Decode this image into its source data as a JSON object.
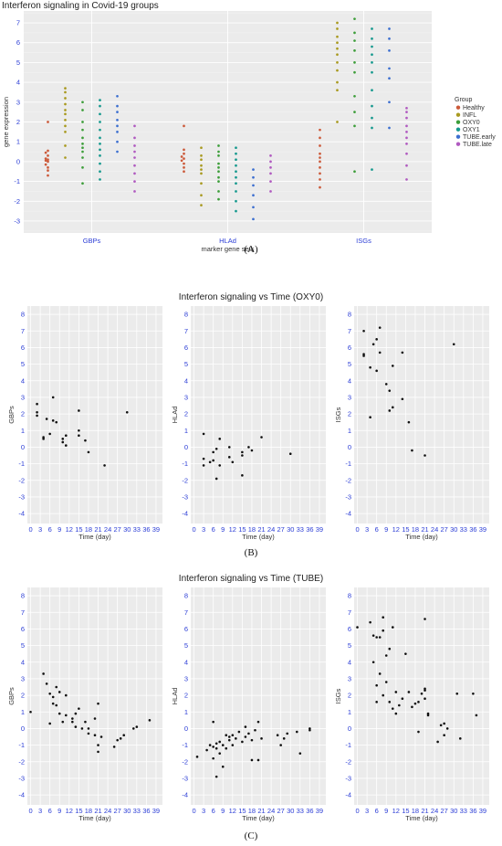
{
  "panel_labels": [
    "(A)",
    "(B)",
    "(C)"
  ],
  "colors": {
    "Healthy": "#cc5a3a",
    "INFL": "#a99a20",
    "OXY0": "#3d9e3a",
    "OXY1": "#16998e",
    "TUBE.early": "#3c6fd0",
    "TUBE.late": "#b05ac0",
    "panel_bg": "#ebebeb",
    "grid": "#ffffff",
    "point": "#111111"
  },
  "chart_data": [
    {
      "type": "scatter",
      "title": "Interferon signaling in Covid-19 groups",
      "xlabel": "marker gene sets",
      "ylabel": "gene expression",
      "categories": [
        "GBPs",
        "HLAd",
        "ISGs"
      ],
      "ylim": [
        -3.6,
        7.6
      ],
      "yticks": [
        -3,
        -2,
        -1,
        0,
        1,
        2,
        3,
        4,
        5,
        6,
        7
      ],
      "legend_title": "Group",
      "legend_position": "right",
      "groups": [
        "Healthy",
        "INFL",
        "OXY0",
        "OXY1",
        "TUBE.early",
        "TUBE.late"
      ],
      "series": [
        {
          "name": "Healthy",
          "GBPs": [
            -0.7,
            -0.45,
            -0.3,
            -0.15,
            0,
            0.05,
            0.1,
            0.15,
            0.3,
            0.45,
            0.55,
            2.0
          ],
          "HLAd": [
            -0.5,
            -0.3,
            -0.1,
            0.05,
            0.15,
            0.25,
            0.4,
            0.6,
            1.8
          ],
          "ISGs": [
            -1.3,
            -0.9,
            -0.6,
            -0.3,
            0,
            0.2,
            0.4,
            0.8,
            1.2,
            1.6
          ]
        },
        {
          "name": "INFL",
          "GBPs": [
            0.2,
            0.8,
            1.5,
            1.8,
            2.1,
            2.4,
            2.6,
            2.9,
            3.2,
            3.5,
            3.7
          ],
          "HLAd": [
            -2.2,
            -1.7,
            -1.1,
            -0.6,
            -0.4,
            -0.2,
            0.1,
            0.3,
            0.7
          ],
          "ISGs": [
            2.0,
            3.6,
            4.0,
            4.6,
            5.0,
            5.4,
            5.7,
            6.0,
            6.3,
            6.7,
            7.0
          ]
        },
        {
          "name": "OXY0",
          "GBPs": [
            -1.1,
            -0.3,
            0.2,
            0.5,
            0.7,
            0.9,
            1.2,
            1.6,
            2.0,
            2.6,
            3.0
          ],
          "HLAd": [
            -1.9,
            -1.5,
            -1.0,
            -0.8,
            -0.5,
            -0.3,
            -0.1,
            0.3,
            0.5,
            0.8
          ],
          "ISGs": [
            -0.5,
            1.8,
            2.5,
            3.3,
            4.5,
            5.0,
            5.6,
            6.1,
            6.5,
            7.2
          ]
        },
        {
          "name": "OXY1",
          "GBPs": [
            -0.9,
            -0.5,
            -0.1,
            0.3,
            0.6,
            0.9,
            1.2,
            1.6,
            2.0,
            2.4,
            2.8,
            3.1
          ],
          "HLAd": [
            -2.5,
            -2.0,
            -1.5,
            -1.1,
            -0.8,
            -0.5,
            -0.2,
            0.1,
            0.4,
            0.7
          ],
          "ISGs": [
            -0.4,
            1.7,
            2.2,
            2.8,
            3.6,
            4.5,
            5.0,
            5.4,
            5.8,
            6.2,
            6.7
          ]
        },
        {
          "name": "TUBE.early",
          "GBPs": [
            0.5,
            1.0,
            1.5,
            1.8,
            2.1,
            2.5,
            2.8,
            3.3
          ],
          "HLAd": [
            -2.9,
            -2.3,
            -1.7,
            -1.2,
            -0.8,
            -0.4
          ],
          "ISGs": [
            1.7,
            3.0,
            4.2,
            4.7,
            5.6,
            6.2,
            6.7
          ]
        },
        {
          "name": "TUBE.late",
          "GBPs": [
            -1.5,
            -1.0,
            -0.6,
            -0.2,
            0.2,
            0.5,
            0.8,
            1.2,
            1.8
          ],
          "HLAd": [
            -1.5,
            -1.0,
            -0.6,
            -0.3,
            0,
            0.3
          ],
          "ISGs": [
            -0.9,
            -0.2,
            0.4,
            0.9,
            1.2,
            1.5,
            1.8,
            2.2,
            2.5,
            2.7
          ]
        }
      ]
    },
    {
      "type": "scatter",
      "title": "Interferon signaling vs Time (OXY0)",
      "xlabel": "Time (day)",
      "xlim": [
        -1,
        41
      ],
      "ylim": [
        -4.6,
        8.5
      ],
      "xticks": [
        0,
        3,
        6,
        9,
        12,
        15,
        18,
        21,
        24,
        27,
        30,
        33,
        36,
        39
      ],
      "yticks": [
        -4,
        -3,
        -2,
        -1,
        0,
        1,
        2,
        3,
        4,
        5,
        6,
        7,
        8
      ],
      "subplots": [
        {
          "ylabel": "GBPs",
          "points": [
            [
              2,
              1.9
            ],
            [
              2,
              2.1
            ],
            [
              2,
              2.6
            ],
            [
              4,
              0.5
            ],
            [
              4,
              0.6
            ],
            [
              5,
              1.7
            ],
            [
              6,
              0.8
            ],
            [
              7,
              3.0
            ],
            [
              7,
              1.6
            ],
            [
              8,
              1.5
            ],
            [
              10,
              0.5
            ],
            [
              10,
              0.3
            ],
            [
              11,
              0.1
            ],
            [
              11,
              0.7
            ],
            [
              15,
              1.0
            ],
            [
              15,
              0.7
            ],
            [
              15,
              2.2
            ],
            [
              17,
              0.4
            ],
            [
              18,
              -0.3
            ],
            [
              23,
              -1.1
            ],
            [
              30,
              2.1
            ]
          ]
        },
        {
          "ylabel": "HLAd",
          "points": [
            [
              3,
              -1.1
            ],
            [
              3,
              -0.7
            ],
            [
              3,
              0.8
            ],
            [
              5,
              -0.9
            ],
            [
              6,
              -0.3
            ],
            [
              6,
              -0.8
            ],
            [
              7,
              -1.9
            ],
            [
              7,
              -0.1
            ],
            [
              8,
              0.5
            ],
            [
              8,
              -1.1
            ],
            [
              11,
              0.0
            ],
            [
              11,
              -0.6
            ],
            [
              12,
              -0.9
            ],
            [
              15,
              -1.7
            ],
            [
              15,
              -0.5
            ],
            [
              15,
              -0.3
            ],
            [
              17,
              0.0
            ],
            [
              18,
              -0.2
            ],
            [
              21,
              0.6
            ],
            [
              30,
              -0.4
            ]
          ]
        },
        {
          "ylabel": "ISGs",
          "points": [
            [
              2,
              7.0
            ],
            [
              2,
              5.5
            ],
            [
              2,
              5.6
            ],
            [
              4,
              4.8
            ],
            [
              4,
              1.8
            ],
            [
              5,
              6.2
            ],
            [
              6,
              6.5
            ],
            [
              6,
              4.6
            ],
            [
              7,
              7.2
            ],
            [
              7,
              5.7
            ],
            [
              9,
              3.8
            ],
            [
              10,
              3.4
            ],
            [
              10,
              2.2
            ],
            [
              11,
              2.4
            ],
            [
              11,
              4.9
            ],
            [
              14,
              5.7
            ],
            [
              14,
              2.9
            ],
            [
              16,
              1.5
            ],
            [
              17,
              -0.2
            ],
            [
              21,
              -0.5
            ],
            [
              30,
              6.2
            ]
          ]
        }
      ]
    },
    {
      "type": "scatter",
      "title": "Interferon signaling vs Time (TUBE)",
      "xlabel": "Time (day)",
      "xlim": [
        -1,
        41
      ],
      "ylim": [
        -4.6,
        8.5
      ],
      "xticks": [
        0,
        3,
        6,
        9,
        12,
        15,
        18,
        21,
        24,
        27,
        30,
        33,
        36,
        39
      ],
      "yticks": [
        -4,
        -3,
        -2,
        -1,
        0,
        1,
        2,
        3,
        4,
        5,
        6,
        7,
        8
      ],
      "subplots": [
        {
          "ylabel": "GBPs",
          "points": [
            [
              0,
              1.0
            ],
            [
              4,
              3.3
            ],
            [
              5,
              2.7
            ],
            [
              6,
              2.1
            ],
            [
              6,
              0.3
            ],
            [
              7,
              1.9
            ],
            [
              7,
              1.5
            ],
            [
              8,
              2.5
            ],
            [
              8,
              1.4
            ],
            [
              9,
              2.2
            ],
            [
              9,
              0.9
            ],
            [
              10,
              0.4
            ],
            [
              11,
              2.0
            ],
            [
              11,
              0.8
            ],
            [
              13,
              0.4
            ],
            [
              13,
              0.6
            ],
            [
              14,
              0.9
            ],
            [
              14,
              0.1
            ],
            [
              15,
              1.2
            ],
            [
              16,
              0.0
            ],
            [
              17,
              0.4
            ],
            [
              18,
              0.0
            ],
            [
              18,
              -0.3
            ],
            [
              20,
              -0.4
            ],
            [
              20,
              0.6
            ],
            [
              21,
              -1.0
            ],
            [
              21,
              -1.4
            ],
            [
              21,
              1.5
            ],
            [
              22,
              -0.5
            ],
            [
              26,
              -1.1
            ],
            [
              27,
              -0.7
            ],
            [
              28,
              -0.6
            ],
            [
              29,
              -0.4
            ],
            [
              32,
              0.0
            ],
            [
              33,
              0.1
            ],
            [
              37,
              0.5
            ]
          ]
        },
        {
          "ylabel": "HLAd",
          "points": [
            [
              1,
              -1.7
            ],
            [
              4,
              -1.3
            ],
            [
              5,
              -1.0
            ],
            [
              6,
              0.4
            ],
            [
              6,
              -1.1
            ],
            [
              6,
              -1.8
            ],
            [
              7,
              -0.9
            ],
            [
              7,
              -1.2
            ],
            [
              7,
              -2.9
            ],
            [
              8,
              -0.8
            ],
            [
              8,
              -1.5
            ],
            [
              9,
              -1.0
            ],
            [
              9,
              -2.3
            ],
            [
              10,
              -0.4
            ],
            [
              10,
              -1.2
            ],
            [
              11,
              -0.5
            ],
            [
              11,
              -0.7
            ],
            [
              12,
              -0.4
            ],
            [
              12,
              -1.0
            ],
            [
              13,
              -0.6
            ],
            [
              14,
              -0.2
            ],
            [
              15,
              -0.8
            ],
            [
              16,
              -0.5
            ],
            [
              16,
              0.1
            ],
            [
              17,
              -0.3
            ],
            [
              18,
              -1.9
            ],
            [
              18,
              -0.7
            ],
            [
              19,
              -0.1
            ],
            [
              20,
              -1.9
            ],
            [
              20,
              0.4
            ],
            [
              21,
              -0.6
            ],
            [
              26,
              -0.4
            ],
            [
              27,
              -1.0
            ],
            [
              28,
              -0.6
            ],
            [
              29,
              -0.3
            ],
            [
              32,
              -0.2
            ],
            [
              33,
              -1.5
            ],
            [
              36,
              -0.1
            ],
            [
              36,
              0.0
            ]
          ]
        },
        {
          "ylabel": "ISGs",
          "points": [
            [
              0,
              6.1
            ],
            [
              4,
              6.4
            ],
            [
              5,
              5.6
            ],
            [
              5,
              4.0
            ],
            [
              6,
              5.5
            ],
            [
              6,
              2.6
            ],
            [
              6,
              1.6
            ],
            [
              7,
              5.5
            ],
            [
              7,
              3.3
            ],
            [
              8,
              6.7
            ],
            [
              8,
              5.9
            ],
            [
              8,
              2.0
            ],
            [
              9,
              4.4
            ],
            [
              9,
              2.8
            ],
            [
              10,
              4.8
            ],
            [
              10,
              1.6
            ],
            [
              11,
              6.1
            ],
            [
              11,
              1.2
            ],
            [
              12,
              2.2
            ],
            [
              12,
              0.9
            ],
            [
              13,
              1.4
            ],
            [
              14,
              1.8
            ],
            [
              15,
              4.5
            ],
            [
              16,
              2.2
            ],
            [
              17,
              1.3
            ],
            [
              18,
              1.5
            ],
            [
              19,
              -0.2
            ],
            [
              19,
              1.6
            ],
            [
              20,
              2.1
            ],
            [
              21,
              6.6
            ],
            [
              21,
              1.8
            ],
            [
              21,
              2.3
            ],
            [
              21,
              2.4
            ],
            [
              22,
              0.8
            ],
            [
              22,
              0.9
            ],
            [
              25,
              -0.8
            ],
            [
              26,
              0.2
            ],
            [
              27,
              -0.4
            ],
            [
              27,
              0.3
            ],
            [
              28,
              0.0
            ],
            [
              31,
              2.1
            ],
            [
              32,
              -0.6
            ],
            [
              36,
              2.1
            ],
            [
              37,
              0.8
            ]
          ]
        }
      ]
    }
  ]
}
